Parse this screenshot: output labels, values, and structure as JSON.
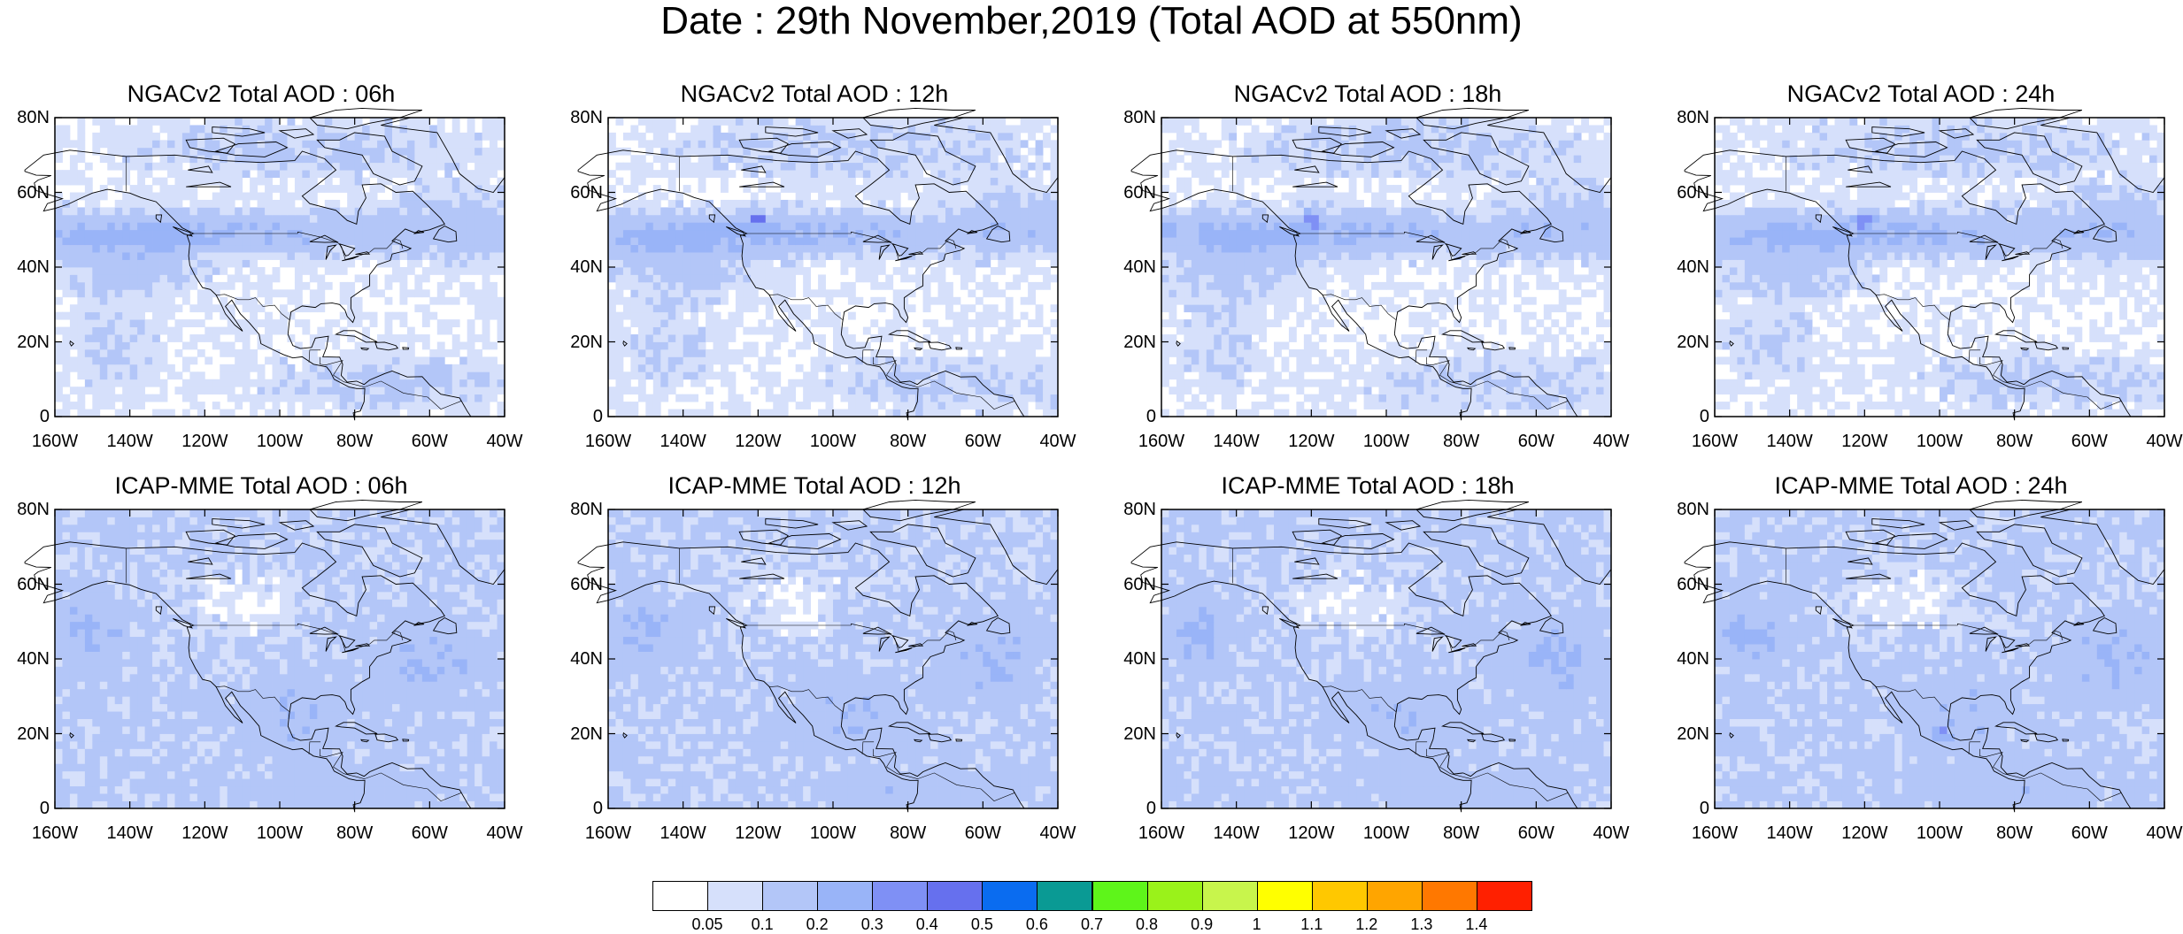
{
  "main_title": "Date : 29th November,2019 (Total AOD at 550nm)",
  "panels": [
    {
      "title": "NGACv2 Total AOD : 06h",
      "model": "ngac",
      "hour": 6
    },
    {
      "title": "NGACv2 Total AOD : 12h",
      "model": "ngac",
      "hour": 12
    },
    {
      "title": "NGACv2 Total AOD : 18h",
      "model": "ngac",
      "hour": 18
    },
    {
      "title": "NGACv2 Total AOD : 24h",
      "model": "ngac",
      "hour": 24
    },
    {
      "title": "ICAP-MME Total AOD : 06h",
      "model": "icap",
      "hour": 6
    },
    {
      "title": "ICAP-MME Total AOD : 12h",
      "model": "icap",
      "hour": 12
    },
    {
      "title": "ICAP-MME Total AOD : 18h",
      "model": "icap",
      "hour": 18
    },
    {
      "title": "ICAP-MME Total AOD : 24h",
      "model": "icap",
      "hour": 24
    }
  ],
  "axes": {
    "x_ticks": [
      "160W",
      "140W",
      "120W",
      "100W",
      "80W",
      "60W",
      "40W"
    ],
    "y_ticks": [
      "80N",
      "60N",
      "40N",
      "20N",
      "0"
    ],
    "lon_range": [
      -160,
      -40
    ],
    "lat_range": [
      0,
      80
    ]
  },
  "colorbar": {
    "labels": [
      "0.05",
      "0.1",
      "0.2",
      "0.3",
      "0.4",
      "0.5",
      "0.6",
      "0.7",
      "0.8",
      "0.9",
      "1",
      "1.1",
      "1.2",
      "1.3",
      "1.4"
    ],
    "colors": [
      "#ffffff",
      "#d6e0fb",
      "#b3c6f8",
      "#99b4f8",
      "#7f90f5",
      "#6670ee",
      "#0a6cf0",
      "#0a9a94",
      "#5ef51a",
      "#9af21a",
      "#c8f54c",
      "#ffff00",
      "#ffc800",
      "#ffa500",
      "#ff7800",
      "#ff2000"
    ]
  }
}
